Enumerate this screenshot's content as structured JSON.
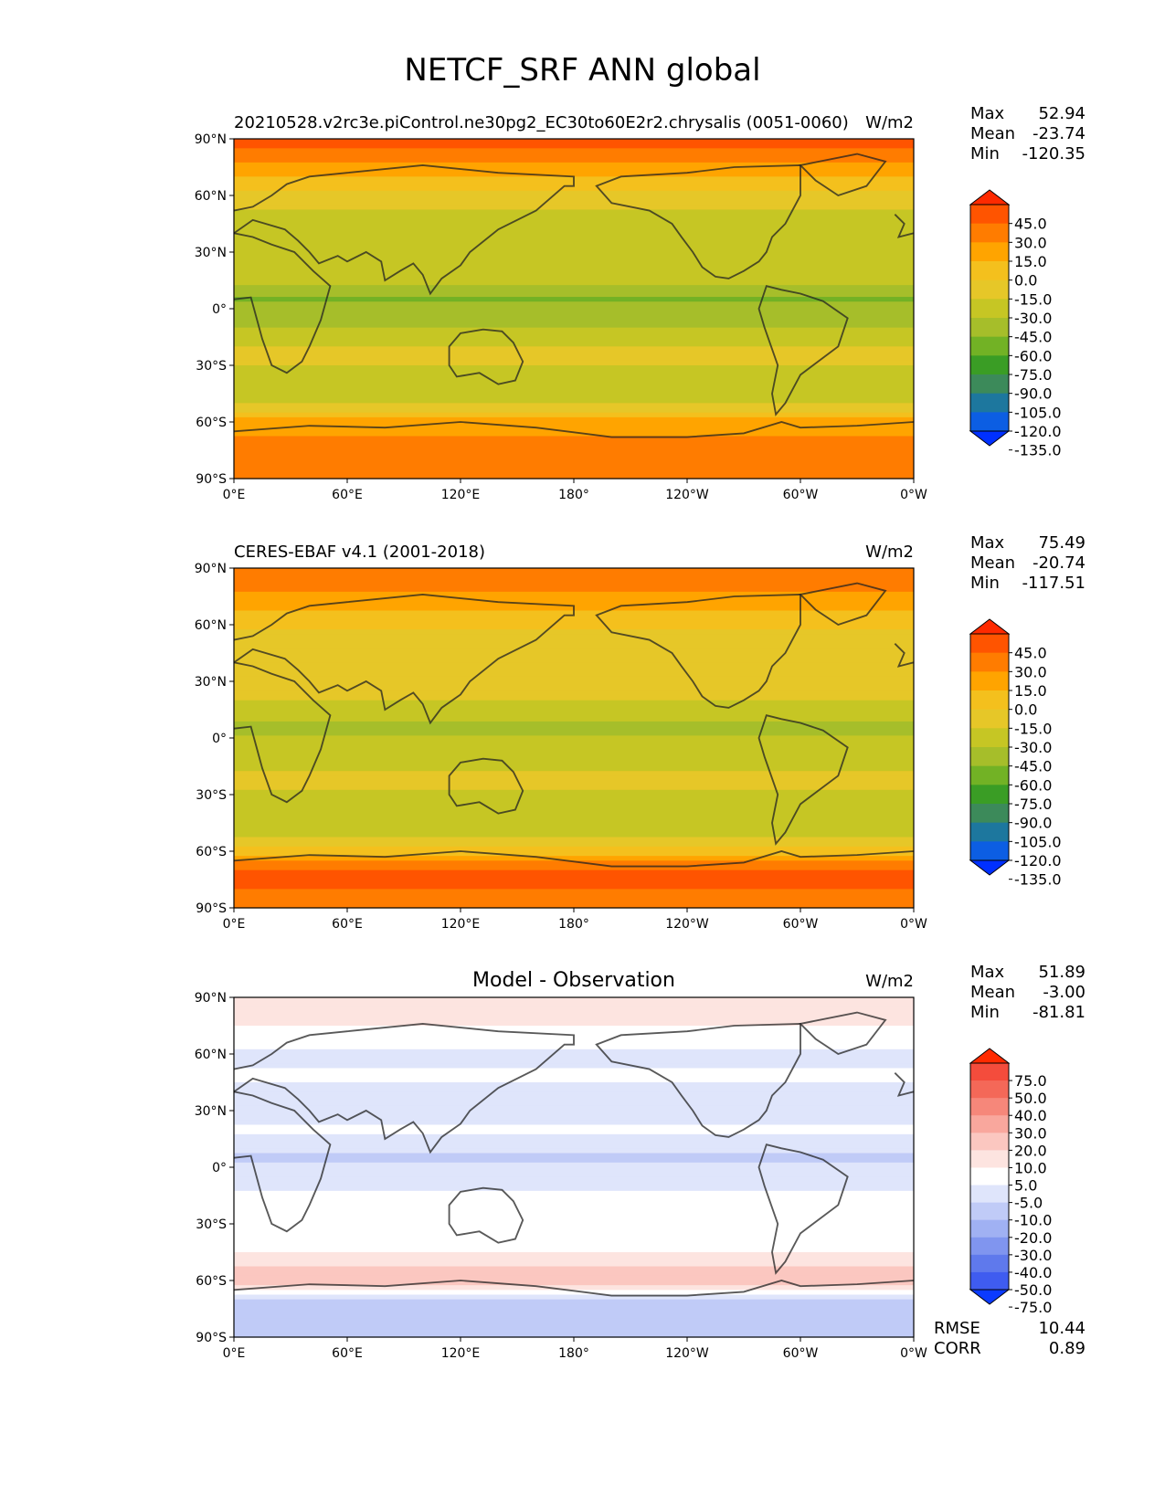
{
  "figure_title": "NETCF_SRF ANN global",
  "chart_data": [
    {
      "type": "heatmap",
      "title_left": "20210528.v2rc3e.piControl.ne30pg2_EC30to60E2r2.chrysalis (0051-0060)",
      "title_center": "",
      "units": "W/m2",
      "xticks": [
        "0°E",
        "60°E",
        "120°E",
        "180°",
        "120°W",
        "60°W",
        "0°W"
      ],
      "yticks": [
        "90°N",
        "60°N",
        "30°N",
        "0°",
        "30°S",
        "60°S",
        "90°S"
      ],
      "xlim": [
        0,
        360
      ],
      "ylim": [
        -90,
        90
      ],
      "stats": [
        {
          "label": "Max",
          "value": "52.94"
        },
        {
          "label": "Mean",
          "value": "-23.74"
        },
        {
          "label": "Min",
          "value": "-120.35"
        }
      ],
      "colorbar": {
        "labels": [
          "45.0",
          "30.0",
          "15.0",
          "0.0",
          "-15.0",
          "-30.0",
          "-45.0",
          "-60.0",
          "-75.0",
          "-90.0",
          "-105.0",
          "-120.0",
          "-135.0"
        ],
        "colors": [
          "#fe2a00",
          "#ff5400",
          "#ff7c00",
          "#ffa400",
          "#f4c01d",
          "#e6c728",
          "#c6c624",
          "#a6be2a",
          "#72b225",
          "#3a9d25",
          "#3c8a5a",
          "#1d779e",
          "#0c5ee3",
          "#0030ff"
        ]
      },
      "zonal_profile": [
        {
          "lat": 90,
          "value": 35
        },
        {
          "lat": 80,
          "value": 22
        },
        {
          "lat": 70,
          "value": 2
        },
        {
          "lat": 60,
          "value": -18
        },
        {
          "lat": 50,
          "value": -32
        },
        {
          "lat": 40,
          "value": -35
        },
        {
          "lat": 30,
          "value": -30
        },
        {
          "lat": 20,
          "value": -36
        },
        {
          "lat": 10,
          "value": -50
        },
        {
          "lat": 5,
          "value": -62
        },
        {
          "lat": 0,
          "value": -50
        },
        {
          "lat": -10,
          "value": -46
        },
        {
          "lat": -20,
          "value": -28
        },
        {
          "lat": -30,
          "value": -30
        },
        {
          "lat": -40,
          "value": -38
        },
        {
          "lat": -50,
          "value": -30
        },
        {
          "lat": -60,
          "value": 5
        },
        {
          "lat": -70,
          "value": 20
        },
        {
          "lat": -80,
          "value": 28
        },
        {
          "lat": -90,
          "value": 22
        }
      ]
    },
    {
      "type": "heatmap",
      "title_left": "CERES-EBAF v4.1 (2001-2018)",
      "title_center": "",
      "units": "W/m2",
      "xticks": [
        "0°E",
        "60°E",
        "120°E",
        "180°",
        "120°W",
        "60°W",
        "0°W"
      ],
      "yticks": [
        "90°N",
        "60°N",
        "30°N",
        "0°",
        "30°S",
        "60°S",
        "90°S"
      ],
      "xlim": [
        0,
        360
      ],
      "ylim": [
        -90,
        90
      ],
      "stats": [
        {
          "label": "Max",
          "value": "75.49"
        },
        {
          "label": "Mean",
          "value": "-20.74"
        },
        {
          "label": "Min",
          "value": "-117.51"
        }
      ],
      "colorbar": {
        "labels": [
          "45.0",
          "30.0",
          "15.0",
          "0.0",
          "-15.0",
          "-30.0",
          "-45.0",
          "-60.0",
          "-75.0",
          "-90.0",
          "-105.0",
          "-120.0",
          "-135.0"
        ],
        "colors": [
          "#fe2a00",
          "#ff5400",
          "#ff7c00",
          "#ffa400",
          "#f4c01d",
          "#e6c728",
          "#c6c624",
          "#a6be2a",
          "#72b225",
          "#3a9d25",
          "#3c8a5a",
          "#1d779e",
          "#0c5ee3",
          "#0030ff"
        ]
      },
      "zonal_profile": [
        {
          "lat": 90,
          "value": 30
        },
        {
          "lat": 80,
          "value": 20
        },
        {
          "lat": 70,
          "value": 5
        },
        {
          "lat": 60,
          "value": -12
        },
        {
          "lat": 50,
          "value": -28
        },
        {
          "lat": 40,
          "value": -30
        },
        {
          "lat": 30,
          "value": -22
        },
        {
          "lat": 20,
          "value": -30
        },
        {
          "lat": 10,
          "value": -42
        },
        {
          "lat": 5,
          "value": -52
        },
        {
          "lat": 0,
          "value": -42
        },
        {
          "lat": -10,
          "value": -40
        },
        {
          "lat": -20,
          "value": -26
        },
        {
          "lat": -30,
          "value": -32
        },
        {
          "lat": -40,
          "value": -42
        },
        {
          "lat": -50,
          "value": -36
        },
        {
          "lat": -60,
          "value": -10
        },
        {
          "lat": -70,
          "value": 30
        },
        {
          "lat": -80,
          "value": 30
        },
        {
          "lat": -90,
          "value": 28
        }
      ]
    },
    {
      "type": "heatmap",
      "title_left": "",
      "title_center": "Model - Observation",
      "units": "W/m2",
      "xticks": [
        "0°E",
        "60°E",
        "120°E",
        "180°",
        "120°W",
        "60°W",
        "0°W"
      ],
      "yticks": [
        "90°N",
        "60°N",
        "30°N",
        "0°",
        "30°S",
        "60°S",
        "90°S"
      ],
      "xlim": [
        0,
        360
      ],
      "ylim": [
        -90,
        90
      ],
      "stats": [
        {
          "label": "Max",
          "value": "51.89"
        },
        {
          "label": "Mean",
          "value": "-3.00"
        },
        {
          "label": "Min",
          "value": "-81.81"
        }
      ],
      "extra_stats": [
        {
          "label": "RMSE",
          "value": "10.44"
        },
        {
          "label": "CORR",
          "value": "0.89"
        }
      ],
      "colorbar": {
        "labels": [
          "75.0",
          "50.0",
          "40.0",
          "30.0",
          "20.0",
          "10.0",
          "5.0",
          "-5.0",
          "-10.0",
          "-20.0",
          "-30.0",
          "-40.0",
          "-50.0",
          "-75.0"
        ],
        "colors": [
          "#ff2a00",
          "#f44c3c",
          "#f46858",
          "#f6877a",
          "#f9a79d",
          "#fbc7c0",
          "#fde4e0",
          "#ffffff",
          "#dfe5fb",
          "#c0cbf7",
          "#a0b1f3",
          "#8095ef",
          "#5f79ec",
          "#3f5cf0",
          "#0b3bff"
        ]
      },
      "zonal_profile": [
        {
          "lat": 90,
          "value": 6
        },
        {
          "lat": 80,
          "value": 8
        },
        {
          "lat": 70,
          "value": 2
        },
        {
          "lat": 60,
          "value": -8
        },
        {
          "lat": 50,
          "value": -4
        },
        {
          "lat": 40,
          "value": -6
        },
        {
          "lat": 30,
          "value": -7
        },
        {
          "lat": 20,
          "value": -4
        },
        {
          "lat": 10,
          "value": -8
        },
        {
          "lat": 5,
          "value": -12
        },
        {
          "lat": 0,
          "value": -7
        },
        {
          "lat": -10,
          "value": -6
        },
        {
          "lat": -20,
          "value": -2
        },
        {
          "lat": -30,
          "value": 2
        },
        {
          "lat": -40,
          "value": 4
        },
        {
          "lat": -50,
          "value": 6
        },
        {
          "lat": -60,
          "value": 18
        },
        {
          "lat": -70,
          "value": -12
        },
        {
          "lat": -80,
          "value": -14
        },
        {
          "lat": -90,
          "value": -10
        }
      ]
    }
  ]
}
